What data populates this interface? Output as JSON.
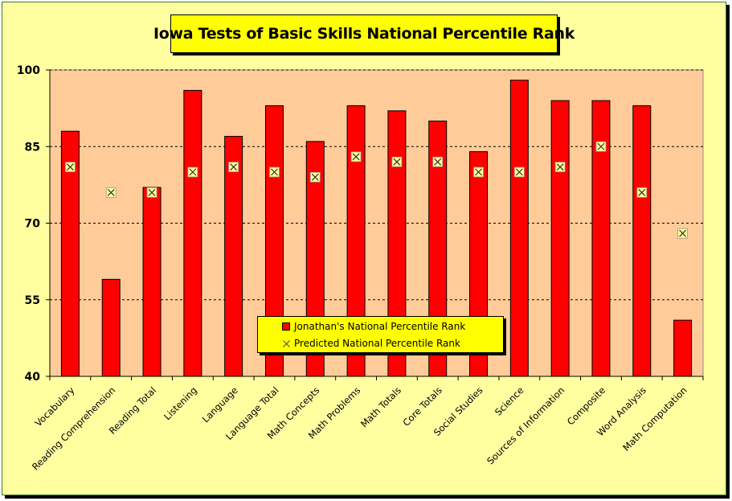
{
  "chart_data": {
    "type": "bar",
    "title": "Iowa Tests of Basic Skills National Percentile Rank",
    "categories": [
      "Vocabulary",
      "Reading Comprehension",
      "Reading Total",
      "Listening",
      "Language",
      "Language Total",
      "Math Concepts",
      "Math Problems",
      "Math Totals",
      "Core Totals",
      "Social Studies",
      "Science",
      "Sources of Information",
      "Composite",
      "Word Analysis",
      "Math Computation"
    ],
    "series": [
      {
        "name": "Jonathan's National Percentile Rank",
        "type": "bar",
        "color": "#ff0000",
        "values": [
          88,
          59,
          77,
          96,
          87,
          93,
          86,
          93,
          92,
          90,
          84,
          98,
          94,
          94,
          93,
          51
        ]
      },
      {
        "name": "Predicted National Percentile Rank",
        "type": "marker",
        "color": "#ffff99",
        "values": [
          81,
          76,
          76,
          80,
          81,
          80,
          79,
          83,
          82,
          82,
          80,
          80,
          81,
          85,
          76,
          68
        ]
      }
    ],
    "ylim": [
      40,
      100
    ],
    "yticks": [
      "40",
      "55",
      "70",
      "85",
      "100"
    ],
    "grid": true,
    "legend_position": "bottom-center",
    "colors": {
      "plot_background": "#ffcc99",
      "chart_background": "#ffffa0",
      "title_background": "#ffff00",
      "legend_background": "#ffff00"
    }
  }
}
